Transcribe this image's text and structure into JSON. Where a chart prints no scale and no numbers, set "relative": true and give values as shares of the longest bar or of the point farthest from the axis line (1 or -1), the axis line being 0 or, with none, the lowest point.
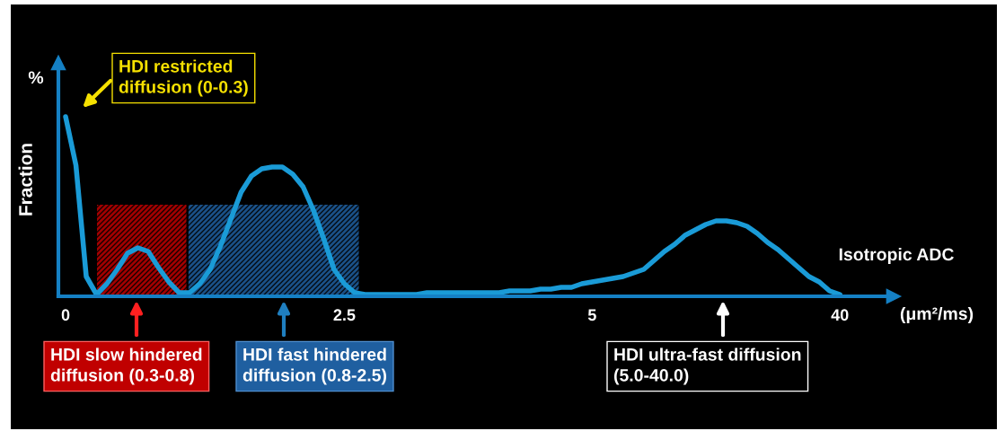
{
  "chart_data": {
    "type": "line",
    "relative": true,
    "ylabel": "Fraction",
    "xlabel": "Isotropic ADC",
    "categories": [
      "0",
      null,
      null,
      null,
      null,
      null,
      null,
      null,
      null,
      null,
      null,
      null,
      null,
      null,
      null,
      null,
      null,
      null,
      null,
      null,
      null,
      null,
      null,
      null,
      null,
      null,
      null,
      "2.5",
      null,
      null,
      null,
      null,
      null,
      null,
      null,
      null,
      null,
      null,
      null,
      null,
      null,
      null,
      null,
      null,
      null,
      null,
      null,
      null,
      null,
      null,
      null,
      "5",
      null,
      null,
      null,
      null,
      null,
      null,
      null,
      null,
      null,
      null,
      null,
      null,
      null,
      null,
      null,
      null,
      null,
      null,
      null,
      null,
      null,
      null,
      null,
      "40"
    ],
    "series": [
      {
        "color": "#1a9bd7",
        "values": [
          1.0,
          0.73,
          0.11,
          0.01,
          0.07,
          0.15,
          0.24,
          0.27,
          0.25,
          0.16,
          0.08,
          0.02,
          0.02,
          0.07,
          0.15,
          0.28,
          0.43,
          0.58,
          0.67,
          0.71,
          0.72,
          0.72,
          0.68,
          0.61,
          0.48,
          0.32,
          0.15,
          0.07,
          0.02,
          0.01,
          0.01,
          0.01,
          0.01,
          0.01,
          0.01,
          0.02,
          0.02,
          0.02,
          0.02,
          0.02,
          0.02,
          0.02,
          0.02,
          0.03,
          0.03,
          0.03,
          0.04,
          0.04,
          0.05,
          0.05,
          0.07,
          0.08,
          0.09,
          0.1,
          0.11,
          0.13,
          0.15,
          0.2,
          0.25,
          0.29,
          0.34,
          0.37,
          0.4,
          0.42,
          0.42,
          0.41,
          0.39,
          0.35,
          0.3,
          0.26,
          0.21,
          0.16,
          0.11,
          0.08,
          0.03,
          0.01
        ]
      }
    ],
    "annotations": [
      "%",
      "HDI restricted\ndiffusion (0-0.3)",
      "HDI slow hindered\ndiffusion (0.3-0.8)",
      "HDI fast hindered\ndiffusion (0.8-2.5)",
      "HDI ultra-fast diffusion\n(5.0-40.0)",
      "(μm²/ms)"
    ],
    "tick_labels": "x",
    "grid": false,
    "legend": false,
    "marker": "none",
    "line_style": "solid"
  }
}
